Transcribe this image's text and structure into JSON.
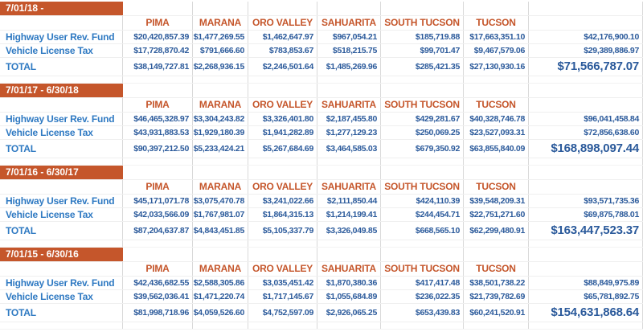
{
  "colors": {
    "period_bar_bg": "#C5562B",
    "column_header_text": "#C5562B",
    "row_label_text": "#2E79C2",
    "value_text": "#2B5A9B",
    "gridline": "#D9D9D9"
  },
  "columns": [
    "PIMA",
    "MARANA",
    "ORO VALLEY",
    "SAHUARITA",
    "SOUTH TUCSON",
    "TUCSON"
  ],
  "row_labels": {
    "hurf": "Highway User Rev. Fund",
    "vlt": "Vehicle License Tax",
    "total": "TOTAL"
  },
  "sections": [
    {
      "period": "7/01/18 -",
      "hurf": {
        "values": [
          "$20,420,857.39",
          "$1,477,269.55",
          "$1,462,647.97",
          "$967,054.21",
          "$185,719.88",
          "$17,663,351.10"
        ],
        "row_total": "$42,176,900.10"
      },
      "vlt": {
        "values": [
          "$17,728,870.42",
          "$791,666.60",
          "$783,853.67",
          "$518,215.75",
          "$99,701.47",
          "$9,467,579.06"
        ],
        "row_total": "$29,389,886.97"
      },
      "total": {
        "values": [
          "$38,149,727.81",
          "$2,268,936.15",
          "$2,246,501.64",
          "$1,485,269.96",
          "$285,421.35",
          "$27,130,930.16"
        ],
        "grand_total": "$71,566,787.07"
      }
    },
    {
      "period": "7/01/17 - 6/30/18",
      "hurf": {
        "values": [
          "$46,465,328.97",
          "$3,304,243.82",
          "$3,326,401.80",
          "$2,187,455.80",
          "$429,281.67",
          "$40,328,746.78"
        ],
        "row_total": "$96,041,458.84"
      },
      "vlt": {
        "values": [
          "$43,931,883.53",
          "$1,929,180.39",
          "$1,941,282.89",
          "$1,277,129.23",
          "$250,069.25",
          "$23,527,093.31"
        ],
        "row_total": "$72,856,638.60"
      },
      "total": {
        "values": [
          "$90,397,212.50",
          "$5,233,424.21",
          "$5,267,684.69",
          "$3,464,585.03",
          "$679,350.92",
          "$63,855,840.09"
        ],
        "grand_total": "$168,898,097.44"
      }
    },
    {
      "period": "7/01/16 - 6/30/17",
      "hurf": {
        "values": [
          "$45,171,071.78",
          "$3,075,470.78",
          "$3,241,022.66",
          "$2,111,850.44",
          "$424,110.39",
          "$39,548,209.31"
        ],
        "row_total": "$93,571,735.36"
      },
      "vlt": {
        "values": [
          "$42,033,566.09",
          "$1,767,981.07",
          "$1,864,315.13",
          "$1,214,199.41",
          "$244,454.71",
          "$22,751,271.60"
        ],
        "row_total": "$69,875,788.01"
      },
      "total": {
        "values": [
          "$87,204,637.87",
          "$4,843,451.85",
          "$5,105,337.79",
          "$3,326,049.85",
          "$668,565.10",
          "$62,299,480.91"
        ],
        "grand_total": "$163,447,523.37"
      }
    },
    {
      "period": "7/01/15 - 6/30/16",
      "hurf": {
        "values": [
          "$42,436,682.55",
          "$2,588,305.86",
          "$3,035,451.42",
          "$1,870,380.36",
          "$417,417.48",
          "$38,501,738.22"
        ],
        "row_total": "$88,849,975.89"
      },
      "vlt": {
        "values": [
          "$39,562,036.41",
          "$1,471,220.74",
          "$1,717,145.67",
          "$1,055,684.89",
          "$236,022.35",
          "$21,739,782.69"
        ],
        "row_total": "$65,781,892.75"
      },
      "total": {
        "values": [
          "$81,998,718.96",
          "$4,059,526.60",
          "$4,752,597.09",
          "$2,926,065.25",
          "$653,439.83",
          "$60,241,520.91"
        ],
        "grand_total": "$154,631,868.64"
      }
    }
  ]
}
